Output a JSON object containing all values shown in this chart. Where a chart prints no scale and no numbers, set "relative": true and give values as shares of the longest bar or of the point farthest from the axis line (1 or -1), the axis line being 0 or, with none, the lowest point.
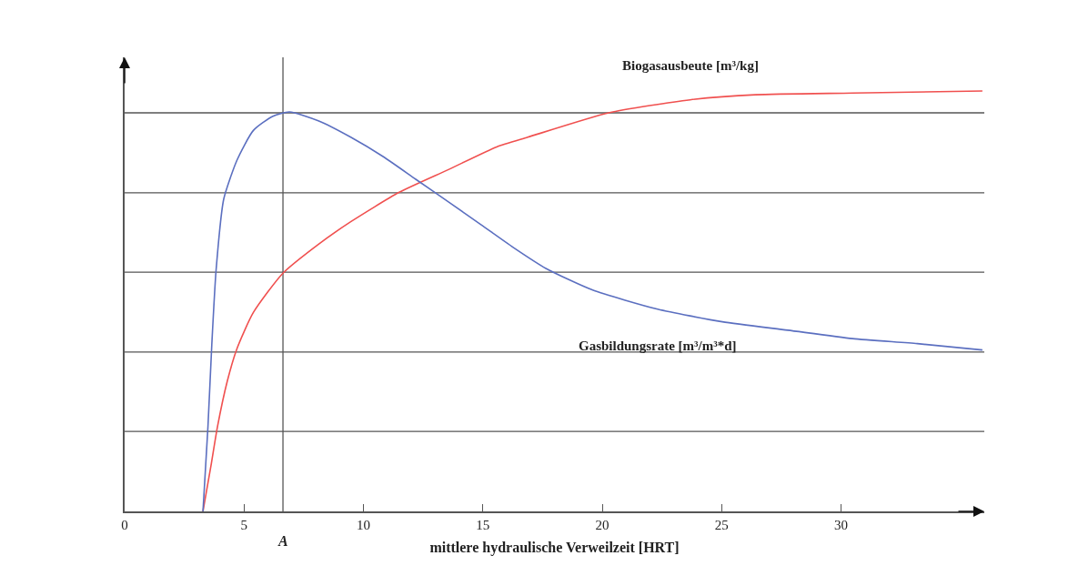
{
  "chart_data": {
    "type": "line",
    "relative": true,
    "xlabel": "mittlere hydraulische Verweilzeit [HRT]",
    "xlim": [
      0,
      36
    ],
    "xticks": [
      0,
      5,
      10,
      15,
      20,
      25,
      30
    ],
    "grid": false,
    "legend": false,
    "marker": "none",
    "line_style": "solid",
    "series": [
      {
        "name": "Biogasausbeute [m³/kg]",
        "color": "#f0504f",
        "x": [
          3.28,
          3.62,
          3.89,
          4.3,
          4.71,
          5.39,
          6.62,
          8.11,
          9.47,
          11.5,
          13.56,
          15.58,
          16.88,
          20.27,
          23.68,
          26.42,
          30.48,
          35.92
        ],
        "values": [
          0,
          0.11,
          0.202,
          0.31,
          0.388,
          0.473,
          0.566,
          0.635,
          0.689,
          0.759,
          0.813,
          0.867,
          0.89,
          0.948,
          0.979,
          0.991,
          0.995,
          1
        ]
      },
      {
        "name": "Gasbildungsrate [m³/m³*d]",
        "color": "#5b6fc0",
        "x": [
          3.28,
          3.49,
          3.65,
          3.83,
          4.15,
          4.71,
          5.39,
          6.21,
          6.9,
          8.11,
          9.47,
          10.82,
          12.19,
          13.56,
          14.92,
          16.27,
          17.64,
          19.58,
          22.32,
          25.03,
          27.77,
          30.48,
          33.2,
          35.92
        ],
        "values": [
          0,
          0.202,
          0.396,
          0.574,
          0.743,
          0.836,
          0.906,
          0.94,
          0.95,
          0.929,
          0.89,
          0.844,
          0.79,
          0.736,
          0.682,
          0.628,
          0.578,
          0.527,
          0.481,
          0.451,
          0.431,
          0.411,
          0.399,
          0.384
        ]
      }
    ],
    "ref_lines": [
      {
        "axis": "y",
        "value": 0.19,
        "color": "#555555"
      },
      {
        "axis": "y",
        "value": 0.379,
        "color": "#555555"
      },
      {
        "axis": "y",
        "value": 0.569,
        "color": "#555555"
      },
      {
        "axis": "y",
        "value": 0.758,
        "color": "#555555"
      },
      {
        "axis": "y",
        "value": 0.948,
        "color": "#555555"
      },
      {
        "axis": "x",
        "value": 6.63,
        "label": "A",
        "color": "#555555"
      }
    ]
  }
}
